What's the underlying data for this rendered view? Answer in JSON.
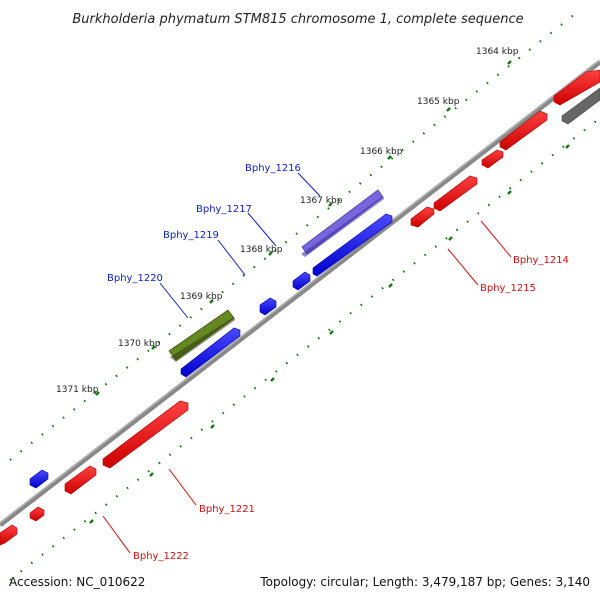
{
  "title": "Burkholderia phymatum STM815 chromosome 1, complete sequence",
  "accession": "Accession: NC_010622",
  "summary": "Topology: circular; Length: 3,479,187 bp; Genes: 3,140",
  "ticks": [
    "1364 kbp",
    "1365 kbp",
    "1366 kbp",
    "1367 kbp",
    "1368 kbp",
    "1369 kbp",
    "1370 kbp",
    "1371 kbp"
  ],
  "gene_labels": [
    "Bphy_1216",
    "Bphy_1217",
    "Bphy_1219",
    "Bphy_1220",
    "Bphy_1214",
    "Bphy_1215",
    "Bphy_1221",
    "Bphy_1222"
  ],
  "colors": {
    "forward_gene": "#0000ee",
    "reverse_gene": "#ee0000",
    "highlight_purple": "#7766dd",
    "highlight_olive": "#668822",
    "gray_gene": "#666666",
    "backbone": "#777777",
    "tick": "#117711",
    "forward_label": "#1122bb",
    "reverse_label": "#cc1111"
  }
}
